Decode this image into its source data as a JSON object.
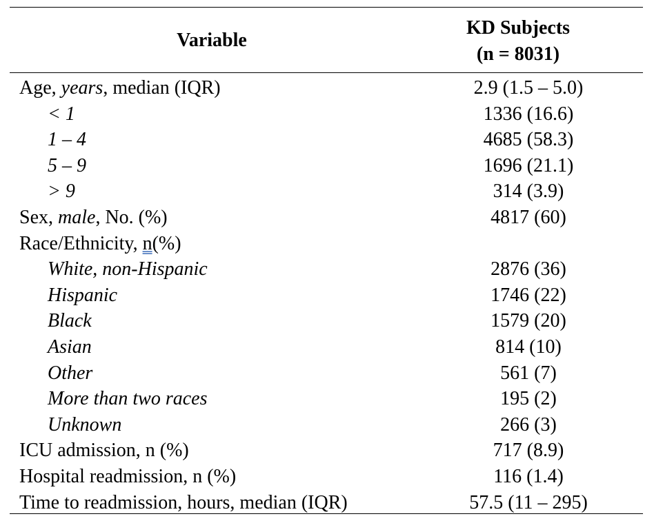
{
  "header": {
    "variable": "Variable",
    "kd_line1": "KD Subjects",
    "kd_line2": "(n = 8031)"
  },
  "rows": [
    {
      "label_parts": [
        "Age, ",
        "years",
        ", median (IQR)"
      ],
      "value": "2.9 (1.5 – 5.0)"
    },
    {
      "label": "< 1",
      "value": "1336 (16.6)"
    },
    {
      "label": "1 – 4",
      "value": "4685 (58.3)"
    },
    {
      "label": "5 – 9",
      "value": "1696 (21.1)"
    },
    {
      "label": "> 9",
      "value": "314 (3.9)"
    },
    {
      "label_parts": [
        "Sex, ",
        "male",
        ", No. (%)"
      ],
      "value": "4817 (60)"
    },
    {
      "label_parts": [
        "Race/Ethnicity, ",
        "n",
        "(%)"
      ],
      "value": ""
    },
    {
      "label": "White, non-Hispanic",
      "value": "2876 (36)"
    },
    {
      "label": "Hispanic",
      "value": "1746 (22)"
    },
    {
      "label": "Black",
      "value": "1579 (20)"
    },
    {
      "label": "Asian",
      "value": "814 (10)"
    },
    {
      "label": "Other",
      "value": "561 (7)"
    },
    {
      "label": "More than two races",
      "value": "195 (2)"
    },
    {
      "label": "Unknown",
      "value": "266 (3)"
    },
    {
      "label": "ICU admission, n (%)",
      "value": "717 (8.9)"
    },
    {
      "label": "Hospital readmission, n (%)",
      "value": "116 (1.4)"
    },
    {
      "label": "Time to readmission, hours, median (IQR)",
      "value": "57.5 (11 – 295)"
    }
  ]
}
